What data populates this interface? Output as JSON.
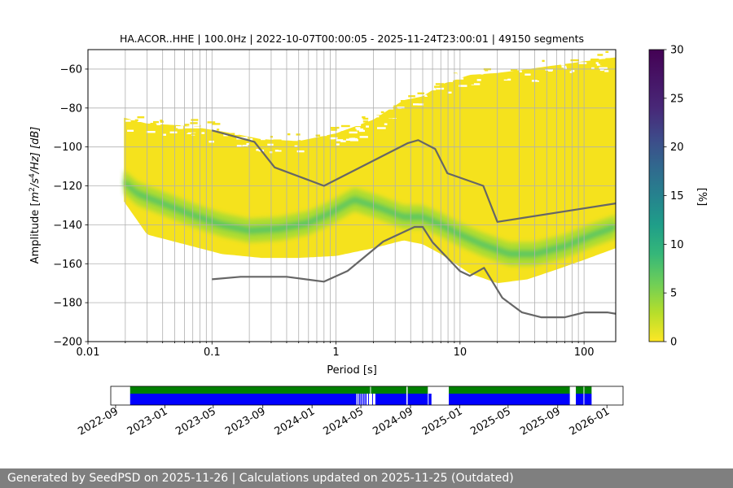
{
  "chart_data": [
    {
      "type": "heatmap",
      "title": "HA.ACOR..HHE | 100.0Hz | 2022-10-07T00:00:05 - 2025-11-24T23:00:01 | 49150 segments",
      "xlabel": "Period [s]",
      "ylabel_parts": {
        "pre": "Amplitude [",
        "m": "m",
        "sup1": "2",
        "mid": "/s",
        "sup2": "4",
        "post": "/Hz] [dB]"
      },
      "xscale": "log",
      "xlim": [
        0.01,
        180
      ],
      "ylim": [
        -200,
        -50
      ],
      "xticks": [
        {
          "value": 0.01,
          "label": "0.01"
        },
        {
          "value": 0.1,
          "label": "0.1"
        },
        {
          "value": 1,
          "label": "1"
        },
        {
          "value": 10,
          "label": "10"
        },
        {
          "value": 100,
          "label": "100"
        }
      ],
      "yticks": [
        {
          "value": -60,
          "label": "−60"
        },
        {
          "value": -80,
          "label": "−80"
        },
        {
          "value": -100,
          "label": "−100"
        },
        {
          "value": -120,
          "label": "−120"
        },
        {
          "value": -140,
          "label": "−140"
        },
        {
          "value": -160,
          "label": "−160"
        },
        {
          "value": -180,
          "label": "−180"
        },
        {
          "value": -200,
          "label": "−200"
        }
      ],
      "grid": true,
      "psd_envelope": {
        "x": [
          0.0195,
          0.03,
          0.06,
          0.12,
          0.25,
          0.5,
          1,
          2,
          3.5,
          5,
          7,
          12,
          20,
          35,
          60,
          100,
          180
        ],
        "top": [
          -85,
          -88,
          -89,
          -92,
          -96,
          -97,
          -93,
          -86,
          -76,
          -74,
          -68,
          -63,
          -62,
          -60,
          -58,
          -56,
          -54
        ],
        "bottom": [
          -128,
          -145,
          -150,
          -155,
          -157,
          -157,
          -156,
          -152,
          -148,
          -150,
          -155,
          -165,
          -170,
          -168,
          -163,
          -158,
          -152
        ]
      },
      "psd_mode": {
        "x": [
          0.0195,
          0.025,
          0.04,
          0.07,
          0.12,
          0.2,
          0.35,
          0.6,
          0.9,
          1.4,
          2.2,
          3.5,
          5,
          7,
          10,
          15,
          25,
          40,
          70,
          120,
          180
        ],
        "y": [
          -118,
          -124,
          -129,
          -135,
          -140,
          -143,
          -142,
          -139,
          -134,
          -127,
          -131,
          -136,
          -136,
          -140,
          -145,
          -150,
          -155,
          -155,
          -151,
          -145,
          -141
        ]
      },
      "high_noise_model": {
        "x": [
          0.1,
          0.22,
          0.32,
          0.8,
          3.8,
          4.6,
          6.3,
          7.9,
          15.4,
          20,
          180
        ],
        "y": [
          -91.5,
          -97.4,
          -110.5,
          -120,
          -98,
          -96.5,
          -101,
          -113.5,
          -120,
          -138.5,
          -129
        ]
      },
      "low_noise_model": {
        "x": [
          0.1,
          0.17,
          0.4,
          0.8,
          1.24,
          2.4,
          4.3,
          5,
          6,
          10,
          12,
          15.6,
          21.9,
          31.6,
          45,
          70,
          101,
          154,
          180
        ],
        "y": [
          -168,
          -166.7,
          -166.7,
          -169.2,
          -163.7,
          -148.6,
          -141.1,
          -141.1,
          -149,
          -163.8,
          -166.2,
          -162.1,
          -177.5,
          -185,
          -187.5,
          -187.5,
          -185,
          -185,
          -185.7
        ]
      }
    },
    {
      "type": "bar",
      "description_label": "data availability",
      "x_axis": "time",
      "xlim": [
        "2022-08-20",
        "2026-02-10"
      ],
      "xticks": [
        "2022-09",
        "2023-01",
        "2023-05",
        "2023-09",
        "2024-01",
        "2024-05",
        "2024-09",
        "2025-01",
        "2025-05",
        "2025-09",
        "2026-01"
      ],
      "green_row": [
        [
          "2022-10-07",
          "2024-05-24"
        ],
        [
          "2024-05-26",
          "2024-08-22"
        ],
        [
          "2024-08-25",
          "2024-10-14"
        ],
        [
          "2024-12-05",
          "2025-10-01"
        ],
        [
          "2025-10-16",
          "2025-11-04"
        ],
        [
          "2025-11-06",
          "2025-11-24"
        ]
      ],
      "blue_row": [
        [
          "2022-10-07",
          "2024-04-20"
        ],
        [
          "2024-04-23",
          "2024-04-25"
        ],
        [
          "2024-04-27",
          "2024-04-30"
        ],
        [
          "2024-05-02",
          "2024-05-05"
        ],
        [
          "2024-05-07",
          "2024-05-10"
        ],
        [
          "2024-05-12",
          "2024-05-15"
        ],
        [
          "2024-05-19",
          "2024-05-21"
        ],
        [
          "2024-05-29",
          "2024-05-31"
        ],
        [
          "2024-06-06",
          "2024-08-22"
        ],
        [
          "2024-08-25",
          "2024-10-14"
        ],
        [
          "2024-10-16",
          "2024-10-23"
        ],
        [
          "2024-12-05",
          "2025-10-01"
        ],
        [
          "2025-10-16",
          "2025-11-04"
        ],
        [
          "2025-11-06",
          "2025-11-24"
        ]
      ],
      "colors": {
        "green": "#008000",
        "blue": "#0000ff"
      }
    }
  ],
  "colorbar": {
    "label": "[%]",
    "ticks": [
      {
        "value": 0,
        "label": "0"
      },
      {
        "value": 5,
        "label": "5"
      },
      {
        "value": 10,
        "label": "10"
      },
      {
        "value": 15,
        "label": "15"
      },
      {
        "value": 20,
        "label": "20"
      },
      {
        "value": 25,
        "label": "25"
      },
      {
        "value": 30,
        "label": "30"
      }
    ],
    "range": [
      0,
      30
    ],
    "colormap": "viridis_r"
  },
  "footer": {
    "text": "Generated by SeedPSD on 2025-11-26 | Calculations updated on 2025-11-25 (Outdated)"
  }
}
